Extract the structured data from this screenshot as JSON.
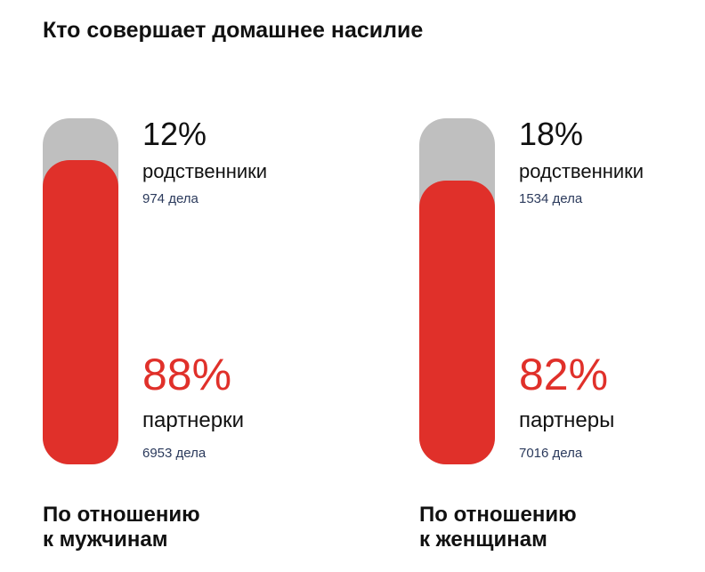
{
  "title": "Кто совершает домашнее насилие",
  "colors": {
    "relatives": "#bfbfbf",
    "partners": "#e0302a",
    "count": "#2b3a5c"
  },
  "chart_data": {
    "type": "bar",
    "title": "Кто совершает домашнее насилие",
    "groups": [
      {
        "label_line1": "По отношению",
        "label_line2": "к мужчинам",
        "segments": [
          {
            "name": "родственники",
            "percent_label": "12%",
            "value": 12,
            "count": "974 дела"
          },
          {
            "name": "партнерки",
            "percent_label": "88%",
            "value": 88,
            "count": "6953 дела"
          }
        ]
      },
      {
        "label_line1": "По отношению",
        "label_line2": "к женщинам",
        "segments": [
          {
            "name": "родственники",
            "percent_label": "18%",
            "value": 18,
            "count": "1534 дела"
          },
          {
            "name": "партнеры",
            "percent_label": "82%",
            "value": 82,
            "count": "7016 дела"
          }
        ]
      }
    ]
  }
}
